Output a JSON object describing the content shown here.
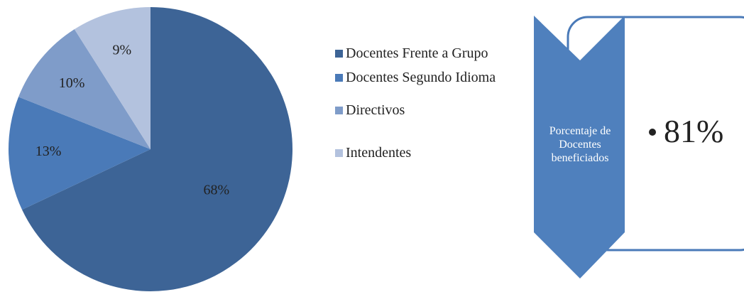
{
  "chart_data": {
    "type": "pie",
    "categories": [
      "Docentes Frente a Grupo",
      "Docentes Segundo Idioma",
      "Directivos",
      "Intendentes"
    ],
    "values": [
      68,
      13,
      10,
      9
    ],
    "value_labels": [
      "68%",
      "13%",
      "10%",
      "9%"
    ],
    "colors": [
      "#3d6496",
      "#4a7ab8",
      "#7f9cc9",
      "#b3c2de"
    ],
    "legend": "right"
  },
  "callout": {
    "label": "Porcentaje de Docentes beneficiados",
    "value": "81%"
  }
}
